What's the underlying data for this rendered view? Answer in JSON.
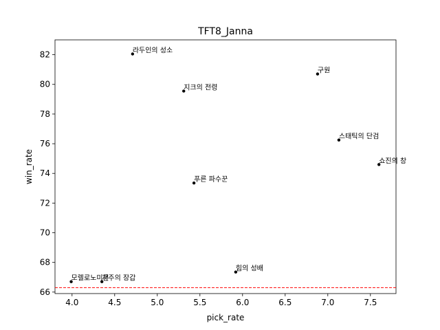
{
  "chart_data": {
    "type": "scatter",
    "title": "TFT8_Janna",
    "xlabel": "pick_rate",
    "ylabel": "win_rate",
    "xlim": [
      3.8,
      7.8
    ],
    "ylim": [
      65.9,
      83.0
    ],
    "xticks": [
      "4.0",
      "4.5",
      "5.0",
      "5.5",
      "6.0",
      "6.5",
      "7.0",
      "7.5"
    ],
    "yticks": [
      "66",
      "68",
      "70",
      "72",
      "74",
      "76",
      "78",
      "80",
      "82"
    ],
    "grid": false,
    "reference_line": {
      "axis": "y",
      "value": 66.3,
      "color": "#ff0000",
      "style": "dashed"
    },
    "points": [
      {
        "label": "라두인의 성소",
        "x": 4.71,
        "y": 82.05
      },
      {
        "label": "구원",
        "x": 6.88,
        "y": 80.7
      },
      {
        "label": "지크의 전령",
        "x": 5.31,
        "y": 79.55
      },
      {
        "label": "스태틱의 단검",
        "x": 7.13,
        "y": 76.25
      },
      {
        "label": "쇼진의 창",
        "x": 7.6,
        "y": 74.6
      },
      {
        "label": "푸른 파수꾼",
        "x": 5.43,
        "y": 73.35
      },
      {
        "label": "힘의 성배",
        "x": 5.92,
        "y": 67.35
      },
      {
        "label": "모렐로노미콘",
        "x": 3.99,
        "y": 66.7
      },
      {
        "label": "저주의 장갑",
        "x": 4.35,
        "y": 66.7
      }
    ],
    "point_color": "#000000"
  }
}
